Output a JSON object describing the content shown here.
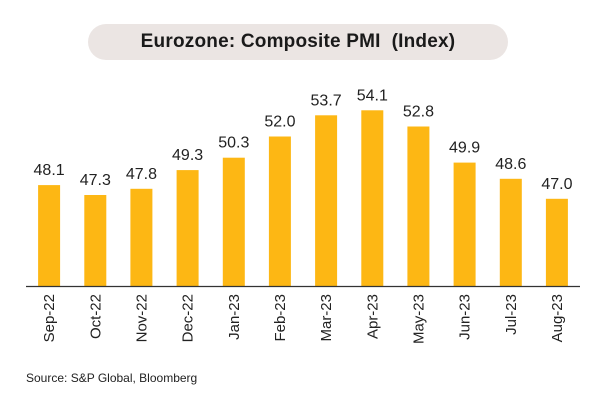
{
  "chart_data": {
    "type": "bar",
    "title": "Eurozone: Composite PMI  (Index)",
    "categories": [
      "Sep-22",
      "Oct-22",
      "Nov-22",
      "Dec-22",
      "Jan-23",
      "Feb-23",
      "Mar-23",
      "Apr-23",
      "May-23",
      "Jun-23",
      "Jul-23",
      "Aug-23"
    ],
    "values": [
      48.1,
      47.3,
      47.8,
      49.3,
      50.3,
      52.0,
      53.7,
      54.1,
      52.8,
      49.9,
      48.6,
      47.0
    ],
    "value_labels": [
      "48.1",
      "47.3",
      "47.8",
      "49.3",
      "50.3",
      "52.0",
      "53.7",
      "54.1",
      "52.8",
      "49.9",
      "48.6",
      "47.0"
    ],
    "ylim": [
      40,
      55
    ],
    "xlabel": "",
    "ylabel": "",
    "grid": false,
    "bar_color": "#fdb714",
    "axis_color": "#333333"
  },
  "source": "Source: S&P Global, Bloomberg"
}
